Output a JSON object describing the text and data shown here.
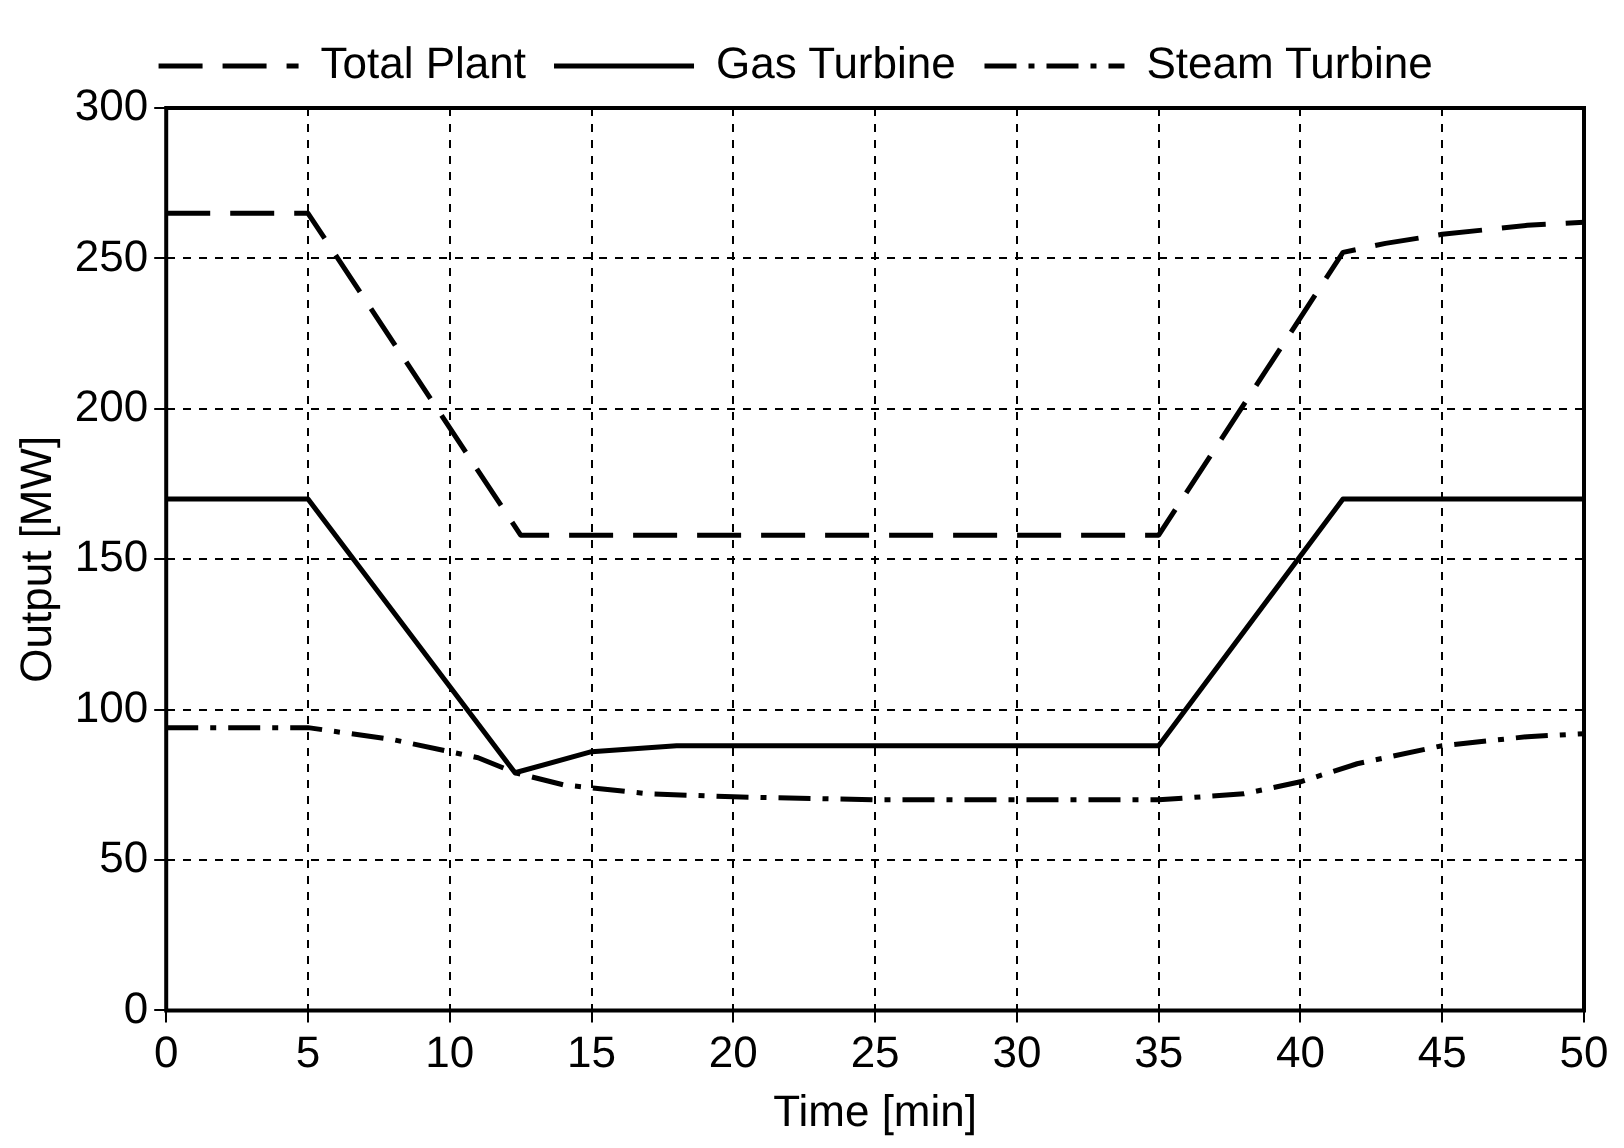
{
  "chart_data": {
    "type": "line",
    "xlabel": "Time [min]",
    "ylabel": "Output [MW]",
    "xlim": [
      0,
      50
    ],
    "xticks": [
      0,
      5,
      10,
      15,
      20,
      25,
      30,
      35,
      40,
      45,
      50
    ],
    "ylim": [
      0,
      300
    ],
    "yticks": [
      0,
      50,
      100,
      150,
      200,
      250,
      300
    ],
    "grid": true,
    "legend": "top",
    "marker": "none",
    "series": [
      {
        "name": "Total Plant",
        "color": "#000000",
        "line_style": "dashed",
        "x": [
          0,
          5,
          12.5,
          35,
          41.5,
          43,
          45,
          48,
          50
        ],
        "values": [
          265,
          265,
          158,
          158,
          252,
          255,
          258,
          261,
          262
        ]
      },
      {
        "name": "Gas Turbine",
        "color": "#000000",
        "line_style": "solid",
        "x": [
          0,
          5,
          12.3,
          15,
          18,
          35,
          41.5,
          50
        ],
        "values": [
          170,
          170,
          79,
          86,
          88,
          88,
          170,
          170
        ]
      },
      {
        "name": "Steam Turbine",
        "color": "#000000",
        "line_style": "dashdot",
        "x": [
          0,
          5,
          8,
          11,
          12.3,
          14,
          17,
          20,
          25,
          35,
          38,
          40,
          42,
          45,
          48,
          50
        ],
        "values": [
          94,
          94,
          90,
          84,
          79,
          75,
          72,
          71,
          70,
          70,
          72,
          76,
          82,
          88,
          91,
          92
        ]
      }
    ]
  }
}
